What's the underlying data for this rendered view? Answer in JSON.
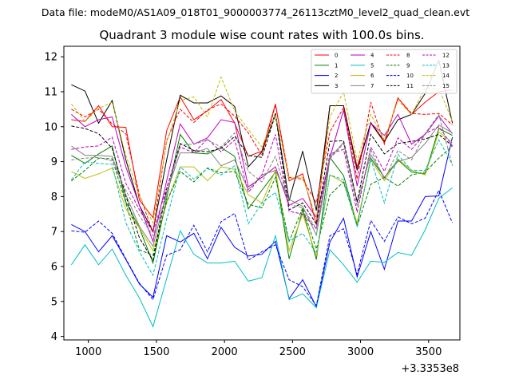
{
  "header": {
    "file_label": "Data file: modeM0/AS1A09_018T01_9000003774_26113cztM0_level2_quad_clean.evt"
  },
  "chart_data": {
    "type": "line",
    "title": "Quadrant 3 module wise count rates with 100.0s bins.",
    "xlabel": "",
    "ylabel": "",
    "x_offset_text": "+3.3353e8",
    "xlim": [
      820,
      3730
    ],
    "ylim": [
      3.9,
      12.3
    ],
    "xticks": [
      1000,
      1500,
      2000,
      2500,
      3000,
      3500
    ],
    "yticks": [
      4,
      5,
      6,
      7,
      8,
      9,
      10,
      11,
      12
    ],
    "grid": false,
    "legend_position": "top-right",
    "x": [
      875,
      975,
      1075,
      1175,
      1275,
      1375,
      1475,
      1575,
      1675,
      1775,
      1875,
      1975,
      2075,
      2175,
      2275,
      2375,
      2475,
      2575,
      2675,
      2775,
      2875,
      2975,
      3075,
      3175,
      3275,
      3375,
      3475,
      3575,
      3675
    ],
    "series": [
      {
        "name": "0",
        "color": "#ff0000",
        "dash": "solid",
        "values": [
          10.2,
          10.15,
          10.6,
          10.0,
          9.98,
          7.9,
          7.4,
          9.88,
          10.85,
          10.2,
          10.45,
          10.78,
          10.1,
          9.15,
          9.3,
          10.65,
          8.45,
          8.65,
          7.2,
          10.6,
          10.6,
          8.85,
          10.1,
          9.55,
          10.82,
          10.35,
          10.7,
          11.0,
          11.05
        ]
      },
      {
        "name": "1",
        "color": "#008000",
        "dash": "solid",
        "values": [
          9.18,
          8.95,
          9.22,
          9.45,
          7.85,
          7.1,
          6.1,
          7.95,
          9.78,
          9.25,
          9.22,
          9.4,
          9.15,
          7.65,
          8.18,
          8.7,
          6.22,
          7.62,
          6.2,
          9.12,
          8.6,
          7.2,
          9.1,
          8.55,
          9.05,
          8.7,
          8.65,
          9.95,
          9.75
        ]
      },
      {
        "name": "2",
        "color": "#0000ff",
        "dash": "solid",
        "values": [
          7.2,
          7.0,
          6.42,
          6.88,
          6.2,
          5.5,
          5.12,
          6.88,
          6.7,
          6.95,
          6.22,
          7.12,
          6.55,
          6.3,
          6.35,
          6.72,
          5.08,
          5.62,
          4.85,
          6.7,
          7.38,
          5.7,
          7.0,
          5.92,
          7.3,
          7.3,
          8.0,
          8.02,
          9.7
        ]
      },
      {
        "name": "3",
        "color": "#000000",
        "dash": "solid",
        "values": [
          11.2,
          11.02,
          10.1,
          10.75,
          9.05,
          7.75,
          7.0,
          9.05,
          10.9,
          10.68,
          10.68,
          10.88,
          10.58,
          8.85,
          9.28,
          10.38,
          7.88,
          9.3,
          7.6,
          10.6,
          10.6,
          8.75,
          10.12,
          9.58,
          10.2,
          10.35,
          10.95,
          11.9,
          10.1
        ]
      },
      {
        "name": "4",
        "color": "#bf00bf",
        "dash": "solid",
        "values": [
          10.35,
          10.0,
          10.2,
          10.28,
          8.85,
          7.75,
          6.72,
          8.45,
          10.08,
          9.5,
          9.68,
          10.2,
          10.12,
          8.28,
          8.55,
          8.85,
          7.75,
          7.95,
          7.4,
          9.12,
          10.48,
          8.3,
          10.1,
          9.75,
          10.35,
          9.5,
          9.78,
          10.3,
          9.8
        ]
      },
      {
        "name": "5",
        "color": "#00bfbf",
        "dash": "solid",
        "values": [
          6.05,
          6.62,
          6.05,
          6.5,
          5.75,
          5.1,
          4.28,
          5.65,
          7.02,
          6.35,
          6.1,
          6.1,
          6.15,
          5.58,
          5.68,
          6.88,
          5.05,
          5.22,
          4.82,
          6.48,
          6.05,
          5.55,
          6.15,
          6.12,
          6.4,
          6.32,
          7.05,
          7.95,
          8.25
        ]
      },
      {
        "name": "6",
        "color": "#bfbf00",
        "dash": "solid",
        "values": [
          8.72,
          8.52,
          8.65,
          8.82,
          7.65,
          7.1,
          6.45,
          7.82,
          8.85,
          8.85,
          8.45,
          8.85,
          8.78,
          8.05,
          7.82,
          8.75,
          6.45,
          7.5,
          6.3,
          8.62,
          8.4,
          7.25,
          9.05,
          8.45,
          9.08,
          8.75,
          8.62,
          9.85,
          9.55
        ]
      },
      {
        "name": "7",
        "color": "#808080",
        "dash": "solid",
        "values": [
          9.45,
          9.18,
          9.18,
          9.15,
          8.05,
          7.15,
          6.58,
          8.12,
          9.25,
          9.25,
          9.38,
          8.88,
          9.05,
          8.2,
          8.62,
          8.75,
          7.92,
          7.72,
          6.9,
          9.12,
          9.55,
          7.85,
          9.2,
          8.55,
          9.0,
          9.12,
          9.52,
          10.05,
          9.82
        ]
      },
      {
        "name": "8",
        "color": "#ff0000",
        "dash": "dashed",
        "values": [
          10.5,
          10.28,
          10.5,
          10.08,
          9.8,
          8.05,
          6.98,
          9.6,
          10.5,
          10.12,
          10.48,
          10.65,
          10.3,
          9.82,
          9.18,
          10.62,
          8.55,
          8.5,
          7.82,
          9.85,
          10.55,
          8.5,
          10.7,
          9.5,
          10.82,
          10.38,
          10.35,
          10.38,
          10.05
        ]
      },
      {
        "name": "9",
        "color": "#008000",
        "dash": "dashed",
        "values": [
          8.45,
          8.75,
          9.1,
          9.08,
          7.82,
          6.48,
          6.32,
          7.85,
          8.72,
          8.42,
          8.82,
          8.68,
          8.72,
          7.78,
          7.68,
          8.55,
          6.72,
          7.68,
          6.5,
          8.05,
          8.42,
          7.15,
          8.35,
          8.55,
          8.3,
          8.62,
          8.7,
          9.1,
          9.45
        ]
      },
      {
        "name": "10",
        "color": "#0000ff",
        "dash": "dashed",
        "values": [
          7.02,
          6.98,
          7.3,
          6.95,
          6.22,
          5.52,
          5.05,
          6.32,
          6.48,
          7.18,
          6.42,
          7.28,
          7.52,
          6.18,
          6.42,
          6.62,
          5.62,
          5.42,
          4.88,
          6.88,
          7.08,
          5.78,
          7.32,
          6.72,
          7.42,
          7.22,
          7.38,
          8.18,
          7.25
        ]
      },
      {
        "name": "11",
        "color": "#000000",
        "dash": "dashed",
        "values": [
          10.02,
          9.95,
          9.8,
          9.38,
          8.02,
          6.82,
          6.18,
          8.22,
          9.52,
          9.32,
          9.28,
          9.38,
          9.72,
          9.18,
          9.12,
          10.35,
          7.62,
          7.82,
          7.22,
          9.58,
          9.6,
          7.85,
          9.78,
          9.22,
          9.52,
          9.58,
          9.65,
          9.78,
          9.45
        ]
      },
      {
        "name": "12",
        "color": "#bf00bf",
        "dash": "dashed",
        "values": [
          9.35,
          9.42,
          9.45,
          9.7,
          8.38,
          7.62,
          6.98,
          8.25,
          9.42,
          9.25,
          9.65,
          9.28,
          9.62,
          8.12,
          8.62,
          9.78,
          7.58,
          7.5,
          7.08,
          9.22,
          9.35,
          7.55,
          9.42,
          8.72,
          9.68,
          9.35,
          9.8,
          10.0,
          9.45
        ]
      },
      {
        "name": "13",
        "color": "#00bfbf",
        "dash": "dashed",
        "values": [
          8.48,
          9.0,
          8.95,
          8.92,
          7.25,
          6.42,
          5.75,
          7.35,
          8.85,
          8.5,
          8.8,
          8.62,
          8.88,
          7.22,
          7.82,
          8.12,
          6.72,
          6.95,
          6.38,
          8.62,
          8.48,
          7.15,
          9.08,
          7.82,
          9.2,
          8.75,
          8.75,
          9.62,
          8.92
        ]
      },
      {
        "name": "14",
        "color": "#bfbf00",
        "dash": "dashed",
        "values": [
          10.65,
          10.15,
          10.52,
          10.7,
          9.18,
          8.02,
          7.25,
          9.55,
          10.75,
          10.85,
          10.28,
          11.42,
          10.45,
          9.92,
          9.42,
          10.35,
          8.52,
          8.55,
          7.38,
          10.28,
          11.0,
          9.02,
          10.35,
          9.62,
          10.75,
          10.35,
          11.1,
          11.1,
          10.15
        ]
      },
      {
        "name": "15",
        "color": "#808080",
        "dash": "dashed",
        "values": [
          9.05,
          9.1,
          9.12,
          9.02,
          8.18,
          7.45,
          6.88,
          8.02,
          9.48,
          9.5,
          9.62,
          9.42,
          9.82,
          8.72,
          8.42,
          9.15,
          7.78,
          7.68,
          7.08,
          9.08,
          9.52,
          7.72,
          9.35,
          8.48,
          9.32,
          9.05,
          9.8,
          10.35,
          8.88
        ]
      }
    ]
  }
}
